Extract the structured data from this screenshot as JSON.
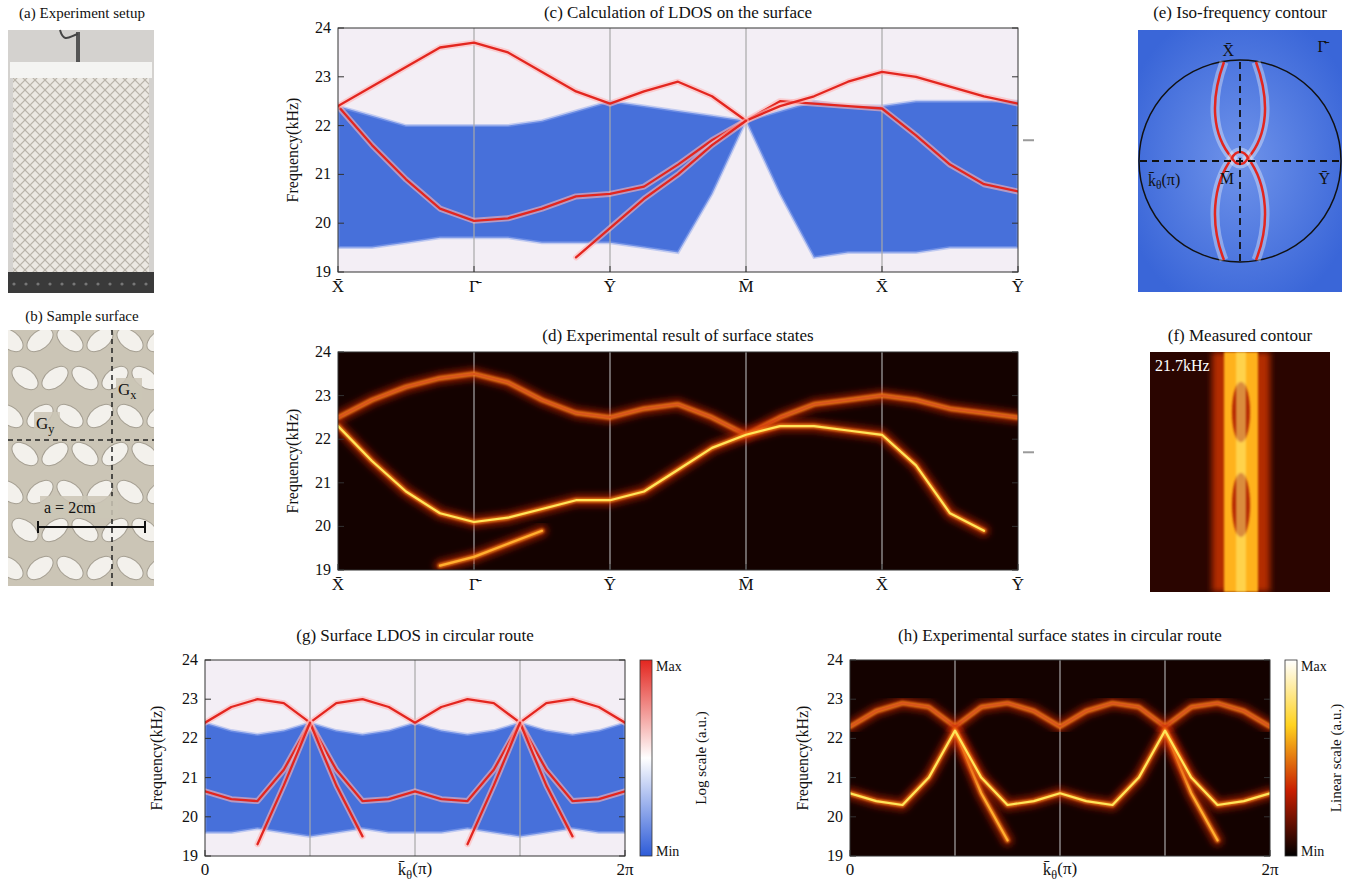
{
  "chart_data": [
    {
      "type": "line",
      "title": "(c) Calculation of LDOS on the surface",
      "y_label": "Frequency(kHz)",
      "x": [
        0,
        0.25,
        0.5,
        0.75,
        1,
        1.25,
        1.5,
        1.75,
        2,
        2.25,
        2.5,
        2.75,
        3,
        3.25,
        3.5,
        3.75,
        4,
        4.25,
        4.5,
        4.75,
        5
      ],
      "xlim": [
        0,
        5
      ],
      "ylim": [
        19,
        24
      ],
      "yticks": [
        19,
        20,
        21,
        22,
        23,
        24
      ],
      "xticks": [
        {
          "value": 0,
          "label": "X̄"
        },
        {
          "value": 1,
          "label": "Γ̄"
        },
        {
          "value": 2,
          "label": "Ȳ"
        },
        {
          "value": 3,
          "label": "M̄"
        },
        {
          "value": 4,
          "label": "X̄"
        },
        {
          "value": 5,
          "label": "Ȳ"
        }
      ],
      "grid": true,
      "marker_frequency": 21.7,
      "bulk_gap": {
        "lower": [
          19.5,
          19.5,
          19.6,
          19.7,
          19.7,
          19.7,
          19.6,
          19.6,
          19.6,
          19.5,
          19.4,
          20.6,
          22.1,
          20.6,
          19.3,
          19.4,
          19.4,
          19.4,
          19.5,
          19.5,
          19.5
        ],
        "upper": [
          22.4,
          22.2,
          22.0,
          22.0,
          22.0,
          22.0,
          22.1,
          22.3,
          22.5,
          22.4,
          22.3,
          22.2,
          22.1,
          22.3,
          22.5,
          22.4,
          22.4,
          22.5,
          22.5,
          22.5,
          22.5
        ]
      },
      "series": [
        {
          "color": "#e3261f",
          "line_style": "solid",
          "values": [
            22.4,
            21.6,
            20.9,
            20.3,
            20.05,
            20.1,
            20.3,
            20.55,
            20.6,
            20.75,
            21.2,
            21.7,
            22.1,
            22.5,
            22.45,
            22.4,
            22.35,
            21.8,
            21.2,
            20.8,
            20.65
          ]
        },
        {
          "color": "#e3261f",
          "line_style": "solid",
          "values": [
            22.4,
            22.8,
            23.2,
            23.6,
            23.7,
            23.5,
            23.1,
            22.7,
            22.45,
            22.7,
            22.9,
            22.6,
            22.1,
            22.4,
            22.6,
            22.9,
            23.1,
            23.0,
            22.8,
            22.6,
            22.45
          ]
        },
        {
          "color": "#e3261f",
          "line_style": "solid",
          "values": [
            null,
            null,
            null,
            null,
            null,
            null,
            null,
            19.3,
            19.9,
            20.5,
            21.0,
            21.6,
            22.1,
            null,
            null,
            null,
            null,
            null,
            null,
            null,
            null
          ]
        }
      ]
    },
    {
      "type": "line",
      "title": "(d) Experimental result of surface states",
      "y_label": "Frequency(kHz)",
      "x": [
        0,
        0.25,
        0.5,
        0.75,
        1,
        1.25,
        1.5,
        1.75,
        2,
        2.25,
        2.5,
        2.75,
        3,
        3.25,
        3.5,
        3.75,
        4,
        4.25,
        4.5,
        4.75,
        5
      ],
      "xlim": [
        0,
        5
      ],
      "ylim": [
        19,
        24
      ],
      "yticks": [
        19,
        20,
        21,
        22,
        23,
        24
      ],
      "xticks": [
        {
          "value": 0,
          "label": "X̄"
        },
        {
          "value": 1,
          "label": "Γ̄"
        },
        {
          "value": 2,
          "label": "Ȳ"
        },
        {
          "value": 3,
          "label": "M̄"
        },
        {
          "value": 4,
          "label": "X̄"
        },
        {
          "value": 5,
          "label": "Ȳ"
        }
      ],
      "grid": true,
      "marker_frequency": 21.7,
      "series": [
        {
          "color": "#d9561c",
          "line_style": "glow",
          "values": [
            22.5,
            22.9,
            23.2,
            23.4,
            23.5,
            23.3,
            22.9,
            22.6,
            22.5,
            22.7,
            22.8,
            22.5,
            22.1,
            22.5,
            22.8,
            22.9,
            23.0,
            22.9,
            22.7,
            22.6,
            22.5
          ]
        },
        {
          "color": "#ffb030",
          "line_style": "glow",
          "values": [
            null,
            null,
            null,
            19.1,
            19.3,
            19.6,
            19.9,
            null,
            null,
            null,
            null,
            null,
            null,
            null,
            null,
            null,
            null,
            null,
            null,
            null,
            null
          ]
        },
        {
          "color": "#ffe65a",
          "line_style": "glow",
          "values": [
            22.3,
            21.5,
            20.8,
            20.3,
            20.1,
            20.2,
            20.4,
            20.6,
            20.6,
            20.8,
            21.3,
            21.8,
            22.1,
            22.3,
            22.3,
            22.2,
            22.1,
            21.4,
            20.3,
            19.9,
            null
          ]
        }
      ]
    },
    {
      "type": "line",
      "title": "(g) Surface LDOS in circular route",
      "y_label": "Frequency(kHz)",
      "x_label": {
        "base": "k̄",
        "sub": "θ",
        "after": "(π)"
      },
      "x": [
        0,
        0.3927,
        0.7854,
        1.1781,
        1.5708,
        1.9635,
        2.3562,
        2.7489,
        3.1416,
        3.5343,
        3.927,
        4.3197,
        4.7124,
        5.1051,
        5.4978,
        5.8905,
        6.2832
      ],
      "xlim": [
        0,
        6.2832
      ],
      "ylim": [
        19,
        24
      ],
      "yticks": [
        19,
        20,
        21,
        22,
        23,
        24
      ],
      "xticks": [
        0,
        {
          "value": 6.2832,
          "label": "2π"
        }
      ],
      "vlines": [
        1.5708,
        3.1416,
        4.7124
      ],
      "grid": true,
      "bulk_gap": {
        "lower": [
          19.6,
          19.6,
          19.7,
          19.6,
          19.5,
          19.6,
          19.7,
          19.6,
          19.6,
          19.6,
          19.7,
          19.6,
          19.5,
          19.6,
          19.7,
          19.6,
          19.6
        ],
        "upper": [
          22.4,
          22.2,
          22.1,
          22.2,
          22.4,
          22.2,
          22.1,
          22.2,
          22.4,
          22.2,
          22.1,
          22.2,
          22.4,
          22.2,
          22.1,
          22.2,
          22.4
        ]
      },
      "colorbar": {
        "label": "Log scale (a.u.)",
        "ticks": [
          "Min",
          "Max"
        ],
        "colors": [
          "#2d5bd8",
          "#ffffff",
          "#e3261f"
        ]
      },
      "series": [
        {
          "color": "#e3261f",
          "line_style": "solid",
          "values": [
            20.65,
            20.45,
            20.4,
            21.2,
            22.4,
            22.9,
            23.0,
            22.8,
            22.4,
            22.8,
            23.0,
            22.9,
            22.4,
            21.2,
            20.4,
            20.45,
            20.65
          ]
        },
        {
          "color": "#e3261f",
          "line_style": "solid",
          "values": [
            22.4,
            22.8,
            23.0,
            22.9,
            22.4,
            21.2,
            20.4,
            20.45,
            20.65,
            20.45,
            20.4,
            21.2,
            22.4,
            22.9,
            23.0,
            22.8,
            22.4
          ]
        },
        {
          "color": "#e3261f",
          "line_style": "solid",
          "values": [
            null,
            null,
            null,
            null,
            22.4,
            20.8,
            19.5,
            null,
            null,
            null,
            null,
            null,
            22.4,
            20.8,
            19.5,
            null,
            null
          ]
        },
        {
          "color": "#e3261f",
          "line_style": "solid",
          "values": [
            null,
            null,
            19.3,
            20.8,
            22.4,
            null,
            null,
            null,
            null,
            null,
            19.3,
            20.8,
            22.4,
            null,
            null,
            null,
            null
          ]
        }
      ]
    },
    {
      "type": "line",
      "title": "(h) Experimental surface states in circular route",
      "y_label": "Frequency(kHz)",
      "x_label": {
        "base": "k̄",
        "sub": "θ",
        "after": "(π)"
      },
      "x": [
        0,
        0.3927,
        0.7854,
        1.1781,
        1.5708,
        1.9635,
        2.3562,
        2.7489,
        3.1416,
        3.5343,
        3.927,
        4.3197,
        4.7124,
        5.1051,
        5.4978,
        5.8905,
        6.2832
      ],
      "xlim": [
        0,
        6.2832
      ],
      "ylim": [
        19,
        24
      ],
      "yticks": [
        19,
        20,
        21,
        22,
        23,
        24
      ],
      "xticks": [
        0,
        {
          "value": 6.2832,
          "label": "2π"
        }
      ],
      "vlines": [
        1.5708,
        3.1416,
        4.7124
      ],
      "grid": true,
      "colorbar": {
        "label": "Linear scale (a.u.)",
        "ticks": [
          "Min",
          "Max"
        ],
        "colors": [
          "#000000",
          "#c81e00",
          "#ffd21f",
          "#ffffff"
        ]
      },
      "series": [
        {
          "color": "#d9561c",
          "line_style": "glow",
          "values": [
            22.3,
            22.7,
            22.9,
            22.8,
            22.3,
            22.8,
            22.9,
            22.7,
            22.3,
            22.7,
            22.9,
            22.8,
            22.3,
            22.8,
            22.9,
            22.7,
            22.3
          ]
        },
        {
          "color": "#ffb030",
          "line_style": "glow",
          "values": [
            null,
            null,
            null,
            null,
            22.2,
            20.6,
            19.4,
            null,
            null,
            null,
            null,
            null,
            22.2,
            20.6,
            19.4,
            null,
            null
          ]
        },
        {
          "color": "#ffe65a",
          "line_style": "glow",
          "values": [
            20.6,
            20.4,
            20.3,
            21.0,
            22.2,
            21.0,
            20.3,
            20.4,
            20.6,
            20.4,
            20.3,
            21.0,
            22.2,
            21.0,
            20.3,
            20.4,
            20.6
          ]
        }
      ]
    }
  ],
  "images": [
    {
      "title": "(a) Experiment setup"
    },
    {
      "title": "(b) Sample surface",
      "labels": [
        {
          "base": "G",
          "sub": "y"
        },
        {
          "base": "G",
          "sub": "x"
        }
      ],
      "scale_bar": "a = 2cm"
    },
    {
      "title": "(e) Iso-frequency contour",
      "labels": [
        "X̄",
        "Γ̄",
        "M̄",
        "Ȳ"
      ],
      "axis_label": {
        "base": "k̄",
        "sub": "θ",
        "after": "(π)"
      }
    },
    {
      "title": "(f) Measured contour",
      "frequency_label": "21.7kHz"
    }
  ]
}
